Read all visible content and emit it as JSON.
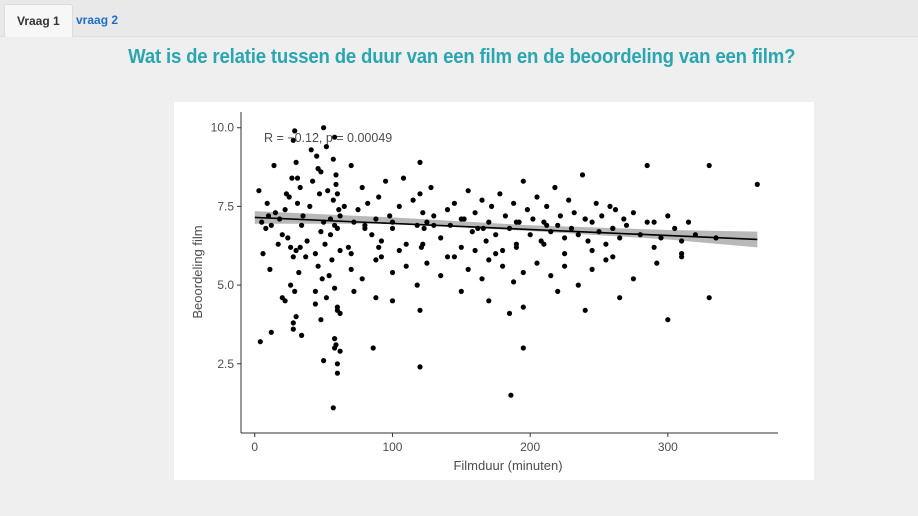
{
  "tabs": [
    {
      "label": "Vraag 1",
      "active": true
    },
    {
      "label": "vraag 2",
      "active": false
    }
  ],
  "question": "Wat is de relatie tussen de duur van een film en de beoordeling van een film?",
  "colors": {
    "accent": "#2aa6b0",
    "tab_link": "#1e6fc8",
    "points": "#000000",
    "ci_band": "#a0a0a0"
  },
  "chart_data": {
    "type": "scatter",
    "xlabel": "Filmduur (minuten)",
    "ylabel": "Beoordeling film",
    "xlim": [
      -10,
      380
    ],
    "ylim": [
      0.3,
      10.5
    ],
    "xticks": [
      0,
      100,
      200,
      300
    ],
    "yticks": [
      2.5,
      5.0,
      7.5,
      10.0
    ],
    "xtick_labels": [
      "0",
      "100",
      "200",
      "300"
    ],
    "ytick_labels": [
      "2.5",
      "5.0",
      "7.5",
      "10.0"
    ],
    "annotation": "R = −0.12, p = 0.00049",
    "grid": false,
    "regression": {
      "x": [
        0,
        365
      ],
      "y": [
        7.15,
        6.45
      ],
      "ci": [
        [
          0,
          6.95,
          7.35
        ],
        [
          100,
          6.95,
          7.15
        ],
        [
          200,
          6.72,
          6.9
        ],
        [
          300,
          6.45,
          6.75
        ],
        [
          365,
          6.2,
          6.7
        ]
      ]
    },
    "points": {
      "x": [
        5,
        8,
        10,
        12,
        15,
        18,
        20,
        22,
        24,
        25,
        26,
        27,
        28,
        28,
        29,
        30,
        30,
        31,
        32,
        33,
        34,
        35,
        38,
        40,
        42,
        44,
        45,
        46,
        47,
        48,
        48,
        49,
        50,
        51,
        52,
        53,
        55,
        56,
        57,
        58,
        58,
        59,
        60,
        60,
        61,
        62,
        3,
        6,
        9,
        11,
        14,
        17,
        20,
        23,
        26,
        28,
        29,
        30,
        31,
        34,
        37,
        41,
        44,
        46,
        48,
        50,
        52,
        54,
        57,
        58,
        59,
        60,
        62,
        4,
        12,
        22,
        28,
        33,
        44,
        50,
        59,
        60,
        65,
        68,
        70,
        72,
        75,
        78,
        80,
        82,
        85,
        88,
        90,
        92,
        95,
        98,
        100,
        105,
        108,
        110,
        115,
        118,
        120,
        120,
        121,
        122,
        123,
        125,
        128,
        130,
        135,
        140,
        142,
        145,
        150,
        152,
        155,
        158,
        160,
        162,
        165,
        168,
        170,
        172,
        175,
        178,
        180,
        182,
        185,
        188,
        190,
        192,
        195,
        198,
        200,
        202,
        205,
        208,
        210,
        212,
        215,
        218,
        220,
        222,
        225,
        228,
        230,
        232,
        235,
        238,
        240,
        242,
        245,
        248,
        250,
        252,
        255,
        258,
        260,
        262,
        265,
        268,
        270,
        275,
        280,
        285,
        290,
        295,
        300,
        305,
        310,
        315,
        320,
        330,
        335,
        365,
        70,
        78,
        88,
        92,
        100,
        110,
        118,
        125,
        135,
        145,
        155,
        165,
        170,
        180,
        188,
        195,
        205,
        215,
        225,
        235,
        245,
        255,
        275,
        292,
        310,
        72,
        88,
        100,
        120,
        150,
        170,
        185,
        195,
        220,
        240,
        265,
        300,
        330,
        70,
        90,
        105,
        122,
        140,
        160,
        175,
        190,
        210,
        225,
        245,
        260,
        290,
        310,
        57,
        60,
        62,
        60,
        58,
        86,
        120,
        186,
        195,
        55,
        58,
        62,
        80,
        100,
        130,
        150,
        166,
        190,
        212,
        240,
        260,
        285
      ],
      "y": [
        7.0,
        6.8,
        7.2,
        6.9,
        7.3,
        7.1,
        6.6,
        7.4,
        6.5,
        7.8,
        6.2,
        8.4,
        5.9,
        9.6,
        4.8,
        8.9,
        6.1,
        7.6,
        5.4,
        8.1,
        6.9,
        7.2,
        6.4,
        7.5,
        8.3,
        6.0,
        9.1,
        5.6,
        7.9,
        6.7,
        8.6,
        5.2,
        7.0,
        6.3,
        9.4,
        8.0,
        6.6,
        5.8,
        7.7,
        9.7,
        4.9,
        8.2,
        6.8,
        4.3,
        7.4,
        6.1,
        8.0,
        6.0,
        7.6,
        5.5,
        8.8,
        6.3,
        4.6,
        7.9,
        5.0,
        3.6,
        9.9,
        4.0,
        8.4,
        3.4,
        5.9,
        9.3,
        4.4,
        8.7,
        3.9,
        10.0,
        4.6,
        5.3,
        9.0,
        3.3,
        8.5,
        4.2,
        4.1,
        3.2,
        3.5,
        4.5,
        3.8,
        6.2,
        4.8,
        2.6,
        3.1,
        7.9,
        7.5,
        6.2,
        8.8,
        7.0,
        7.4,
        8.1,
        6.9,
        7.6,
        6.6,
        7.1,
        7.8,
        6.4,
        8.3,
        7.2,
        6.8,
        7.5,
        8.4,
        6.3,
        7.7,
        6.9,
        8.9,
        7.9,
        6.2,
        7.3,
        6.8,
        7.0,
        8.1,
        7.2,
        6.5,
        7.4,
        6.9,
        7.6,
        6.2,
        7.1,
        8.0,
        6.7,
        7.3,
        6.8,
        7.7,
        6.4,
        7.0,
        7.5,
        6.6,
        7.9,
        6.1,
        7.2,
        6.8,
        7.6,
        6.3,
        7.0,
        8.3,
        7.4,
        6.6,
        7.1,
        7.8,
        6.4,
        7.0,
        7.5,
        6.7,
        8.1,
        6.9,
        7.2,
        6.5,
        7.7,
        6.8,
        7.3,
        6.6,
        8.5,
        7.1,
        6.4,
        7.0,
        7.6,
        6.7,
        7.2,
        6.3,
        7.5,
        6.8,
        7.4,
        6.5,
        7.1,
        6.9,
        7.3,
        6.6,
        8.8,
        7.0,
        6.5,
        7.2,
        6.8,
        6.4,
        7.0,
        6.6,
        8.8,
        6.5,
        8.2,
        5.5,
        5.2,
        5.8,
        5.9,
        5.4,
        5.6,
        5.0,
        5.7,
        5.3,
        5.9,
        5.5,
        5.2,
        5.8,
        5.6,
        5.1,
        5.4,
        5.7,
        5.3,
        5.6,
        5.0,
        5.5,
        5.8,
        5.2,
        5.7,
        5.9,
        4.8,
        4.6,
        4.5,
        4.2,
        4.8,
        4.5,
        4.1,
        4.3,
        4.8,
        4.2,
        4.6,
        3.9,
        4.6,
        6.0,
        6.2,
        6.1,
        6.3,
        5.9,
        6.1,
        6.0,
        6.2,
        6.3,
        6.0,
        6.1,
        5.9,
        6.2,
        6.0,
        1.1,
        2.5,
        2.9,
        2.2,
        3.0,
        3.0,
        2.4,
        1.5,
        3.0,
        7.1,
        6.9,
        7.2,
        6.8,
        7.0,
        6.9,
        7.1,
        6.8,
        7.0,
        6.9,
        7.1,
        6.8,
        7.0
      ]
    }
  }
}
